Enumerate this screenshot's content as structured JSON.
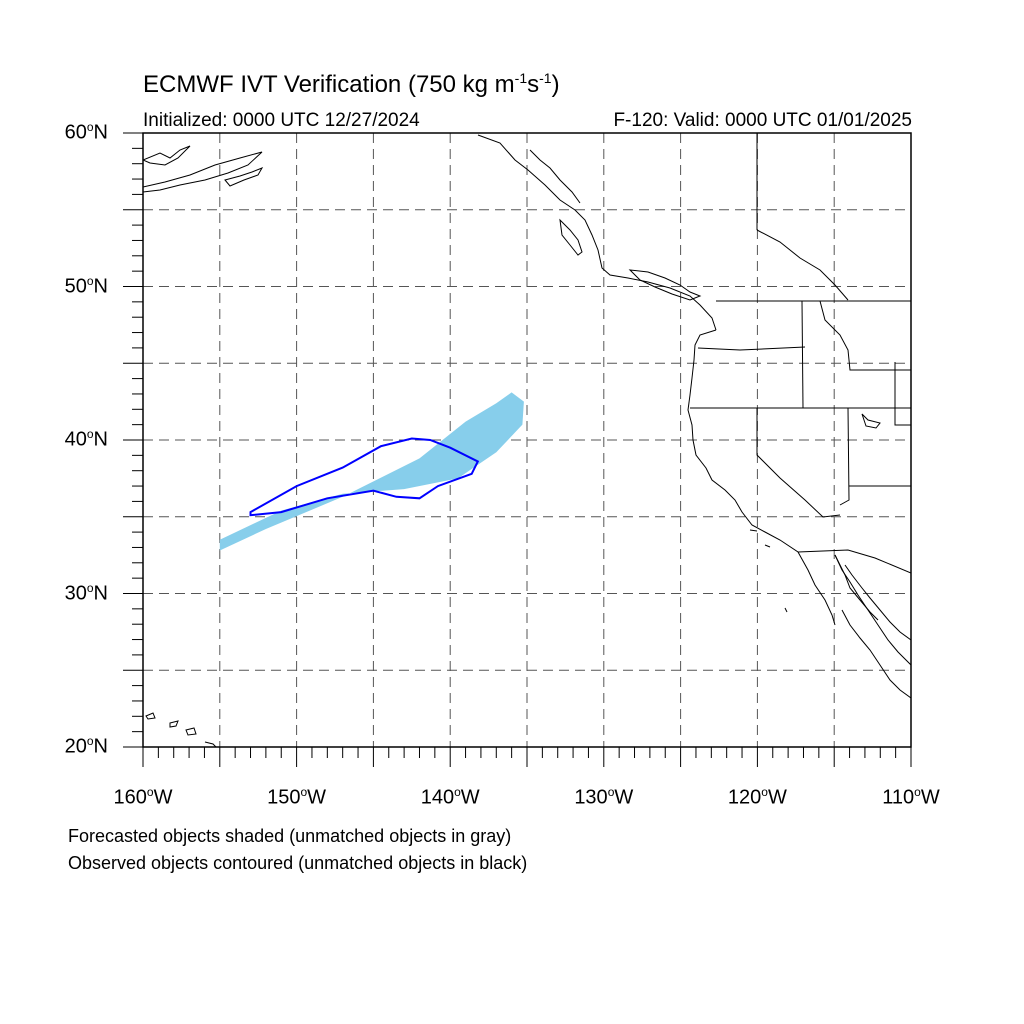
{
  "header": {
    "title_prefix": "ECMWF IVT Verification (750 kg m",
    "title_exp1": "-1",
    "title_mid": "s",
    "title_exp2": "-1",
    "title_suffix": ")",
    "initialized": "Initialized: 0000 UTC 12/27/2024",
    "valid": "F-120: Valid: 0000 UTC 01/01/2025"
  },
  "map": {
    "projection": "cylindrical-equidistant",
    "lon_range": [
      -160,
      -110
    ],
    "lat_range": [
      20,
      60
    ],
    "grid": "dashed, every 5 degrees",
    "lat_labels": [
      {
        "deg": "60",
        "sym": "o",
        "hemi": "N"
      },
      {
        "deg": "50",
        "sym": "o",
        "hemi": "N"
      },
      {
        "deg": "40",
        "sym": "o",
        "hemi": "N"
      },
      {
        "deg": "30",
        "sym": "o",
        "hemi": "N"
      },
      {
        "deg": "20",
        "sym": "o",
        "hemi": "N"
      }
    ],
    "lon_labels": [
      {
        "deg": "160",
        "sym": "o",
        "hemi": "W"
      },
      {
        "deg": "150",
        "sym": "o",
        "hemi": "W"
      },
      {
        "deg": "140",
        "sym": "o",
        "hemi": "W"
      },
      {
        "deg": "130",
        "sym": "o",
        "hemi": "W"
      },
      {
        "deg": "120",
        "sym": "o",
        "hemi": "W"
      },
      {
        "deg": "110",
        "sym": "o",
        "hemi": "W"
      }
    ],
    "forecast_object": {
      "color": "#87ceeb",
      "outline_lonlat": [
        [
          -155,
          32.8
        ],
        [
          -152,
          34.2
        ],
        [
          -147,
          36.3
        ],
        [
          -142,
          38.8
        ],
        [
          -139,
          41.2
        ],
        [
          -137,
          42.4
        ],
        [
          -136,
          43.1
        ],
        [
          -135.2,
          42.5
        ],
        [
          -135.3,
          41
        ],
        [
          -137,
          39.2
        ],
        [
          -139.5,
          37.5
        ],
        [
          -143,
          36.8
        ],
        [
          -147,
          36.5
        ],
        [
          -151,
          35.4
        ],
        [
          -155,
          33.5
        ]
      ]
    },
    "observed_object": {
      "color": "#0000ff",
      "outline_lonlat": [
        [
          -153,
          35.3
        ],
        [
          -150,
          37
        ],
        [
          -147,
          38.2
        ],
        [
          -144.5,
          39.6
        ],
        [
          -142.5,
          40.1
        ],
        [
          -141.3,
          40
        ],
        [
          -140,
          39.5
        ],
        [
          -138.2,
          38.6
        ],
        [
          -138.6,
          37.8
        ],
        [
          -140.8,
          37
        ],
        [
          -142,
          36.2
        ],
        [
          -143.5,
          36.3
        ],
        [
          -145,
          36.7
        ],
        [
          -148,
          36.2
        ],
        [
          -151,
          35.3
        ],
        [
          -153,
          35.1
        ]
      ]
    }
  },
  "notes": {
    "line1": "Forecasted objects shaded (unmatched objects in gray)",
    "line2": "Observed objects contoured (unmatched objects in black)"
  }
}
